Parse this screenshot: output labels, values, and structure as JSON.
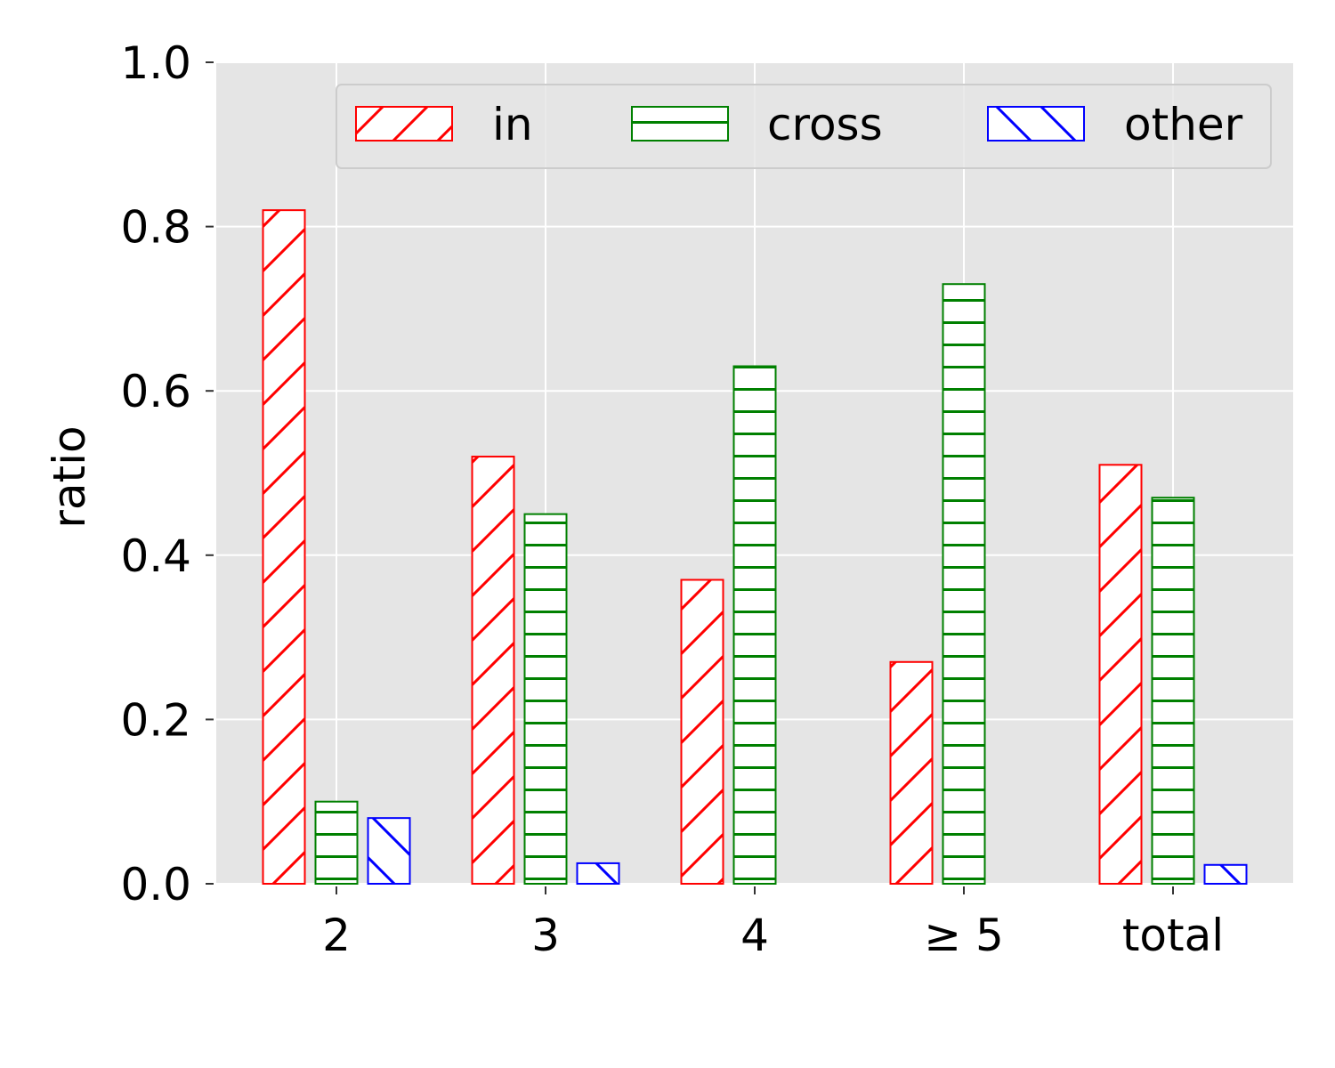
{
  "chart_data": {
    "type": "bar",
    "title": "",
    "xlabel": "",
    "ylabel": "ratio",
    "ylim": [
      0,
      1.0
    ],
    "yticks": [
      "0.0",
      "0.2",
      "0.4",
      "0.6",
      "0.8",
      "1.0"
    ],
    "categories": [
      "2",
      "3",
      "4",
      "≥ 5",
      "total"
    ],
    "grid": true,
    "legend": {
      "placement": "top-right",
      "columns": 3
    },
    "series": [
      {
        "name": "in",
        "color": "#ff0000",
        "hatch": "diagonal-forward",
        "values": [
          0.82,
          0.52,
          0.37,
          0.27,
          0.51
        ]
      },
      {
        "name": "cross",
        "color": "#008000",
        "hatch": "horizontal",
        "values": [
          0.1,
          0.45,
          0.63,
          0.73,
          0.47
        ]
      },
      {
        "name": "other",
        "color": "#0000ff",
        "hatch": "diagonal-back",
        "values": [
          0.08,
          0.025,
          0.0,
          0.0,
          0.023
        ]
      }
    ]
  }
}
